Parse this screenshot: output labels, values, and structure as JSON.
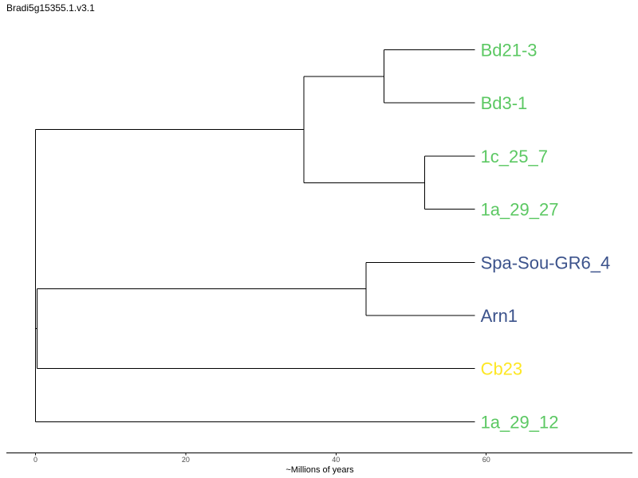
{
  "title": "Bradi5g15355.1.v3.1",
  "axis": {
    "label": "~Millions of years",
    "ticks": [
      0,
      20,
      40,
      60
    ],
    "range": [
      -3.7,
      80
    ]
  },
  "colors": {
    "green": "#5cc863",
    "navy": "#3b528b",
    "yellow": "#fde725"
  },
  "leaves": [
    {
      "id": "bd21",
      "label": "Bd21-3",
      "color": "#5cc863"
    },
    {
      "id": "bd3",
      "label": "Bd3-1",
      "color": "#5cc863"
    },
    {
      "id": "c1c",
      "label": "1c_25_7",
      "color": "#5cc863"
    },
    {
      "id": "a129",
      "label": "1a_29_27",
      "color": "#5cc863"
    },
    {
      "id": "spa",
      "label": "Spa-Sou-GR6_4",
      "color": "#3b528b"
    },
    {
      "id": "arn",
      "label": "Arn1",
      "color": "#3b528b"
    },
    {
      "id": "cb23",
      "label": "Cb23",
      "color": "#fde725"
    },
    {
      "id": "a112",
      "label": "1a_29_12",
      "color": "#5cc863"
    }
  ],
  "tree": {
    "children": [
      {
        "age": 35.7,
        "children": [
          {
            "age": 46.4,
            "children": [
              {
                "leaf": "bd21"
              },
              {
                "leaf": "bd3"
              }
            ]
          },
          {
            "age": 51.8,
            "children": [
              {
                "leaf": "c1c"
              },
              {
                "leaf": "a129"
              }
            ]
          }
        ]
      },
      {
        "age": 0.2,
        "children": [
          {
            "age": 44.0,
            "children": [
              {
                "leaf": "spa"
              },
              {
                "leaf": "arn"
              }
            ]
          },
          {
            "leaf": "cb23"
          }
        ]
      },
      {
        "leaf": "a112"
      }
    ],
    "tip_age": 58.5
  }
}
